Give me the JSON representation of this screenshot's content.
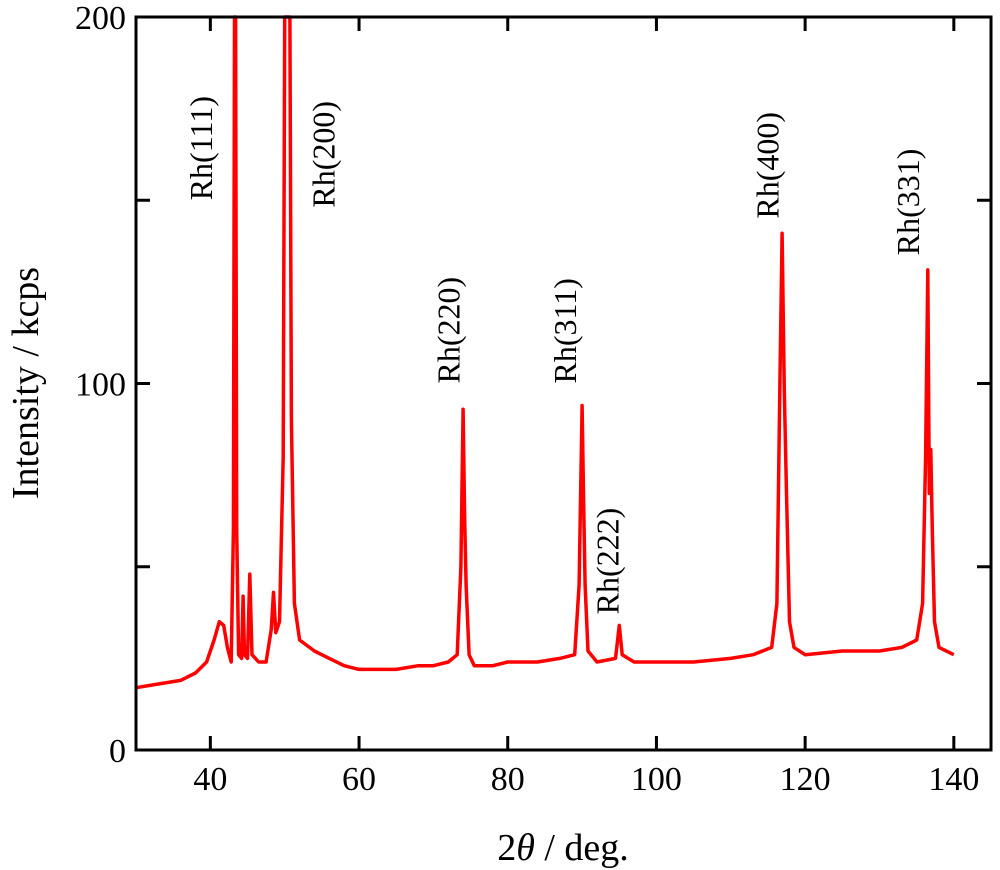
{
  "chart_data": {
    "type": "line",
    "xlabel_prefix": "2",
    "xlabel_symbol": "θ",
    "xlabel_suffix": " / deg.",
    "ylabel": "Intensity / kcps",
    "xlim": [
      30,
      145
    ],
    "ylim": [
      0,
      200
    ],
    "x_ticks": [
      40,
      60,
      80,
      100,
      120,
      140
    ],
    "y_ticks": [
      0,
      50,
      100,
      150,
      200
    ],
    "y_tick_labels": [
      "0",
      "",
      "100",
      "",
      "200"
    ],
    "grid": false,
    "legend": "none",
    "series": [
      {
        "color": "#ff0000",
        "points": [
          [
            30,
            17
          ],
          [
            33,
            18
          ],
          [
            36,
            19
          ],
          [
            38,
            21
          ],
          [
            39.5,
            24
          ],
          [
            40.5,
            30
          ],
          [
            41.2,
            35
          ],
          [
            41.8,
            34
          ],
          [
            42.3,
            28
          ],
          [
            42.8,
            24
          ],
          [
            43.1,
            60
          ],
          [
            43.25,
            200
          ],
          [
            43.4,
            200
          ],
          [
            43.55,
            60
          ],
          [
            43.8,
            26
          ],
          [
            44.2,
            25
          ],
          [
            44.4,
            42
          ],
          [
            44.6,
            26
          ],
          [
            45,
            25
          ],
          [
            45.3,
            48
          ],
          [
            45.6,
            26
          ],
          [
            46.5,
            24
          ],
          [
            47.5,
            24
          ],
          [
            48.2,
            33
          ],
          [
            48.5,
            43
          ],
          [
            48.8,
            32
          ],
          [
            49.3,
            35
          ],
          [
            49.8,
            80
          ],
          [
            50.0,
            200
          ],
          [
            50.7,
            200
          ],
          [
            50.9,
            90
          ],
          [
            51.3,
            40
          ],
          [
            52,
            30
          ],
          [
            54,
            27
          ],
          [
            56,
            25
          ],
          [
            58,
            23
          ],
          [
            60,
            22
          ],
          [
            62,
            22
          ],
          [
            65,
            22
          ],
          [
            68,
            23
          ],
          [
            70,
            23
          ],
          [
            72,
            24
          ],
          [
            73.2,
            26
          ],
          [
            73.7,
            50
          ],
          [
            74,
            93
          ],
          [
            74.2,
            64
          ],
          [
            74.4,
            45
          ],
          [
            74.8,
            26
          ],
          [
            75.5,
            23
          ],
          [
            78,
            23
          ],
          [
            80,
            24
          ],
          [
            84,
            24
          ],
          [
            87,
            25
          ],
          [
            89,
            26
          ],
          [
            89.6,
            45
          ],
          [
            90,
            94
          ],
          [
            90.2,
            68
          ],
          [
            90.4,
            45
          ],
          [
            90.8,
            27
          ],
          [
            92,
            24
          ],
          [
            94.5,
            25
          ],
          [
            95,
            34
          ],
          [
            95.4,
            26
          ],
          [
            97,
            24
          ],
          [
            100,
            24
          ],
          [
            105,
            24
          ],
          [
            110,
            25
          ],
          [
            113,
            26
          ],
          [
            115.5,
            28
          ],
          [
            116.2,
            40
          ],
          [
            116.6,
            100
          ],
          [
            116.9,
            141
          ],
          [
            117.2,
            98
          ],
          [
            117.5,
            70
          ],
          [
            117.9,
            35
          ],
          [
            118.5,
            28
          ],
          [
            120,
            26
          ],
          [
            125,
            27
          ],
          [
            130,
            27
          ],
          [
            133,
            28
          ],
          [
            135,
            30
          ],
          [
            135.8,
            40
          ],
          [
            136.2,
            80
          ],
          [
            136.5,
            131
          ],
          [
            136.7,
            70
          ],
          [
            136.9,
            82
          ],
          [
            137.1,
            60
          ],
          [
            137.4,
            35
          ],
          [
            138,
            28
          ],
          [
            140,
            26
          ]
        ]
      }
    ],
    "annotations": [
      {
        "text": "Rh(111)",
        "x": 40.2,
        "y": 150
      },
      {
        "text": "Rh(200)",
        "x": 56.7,
        "y": 148
      },
      {
        "text": "Rh(220)",
        "x": 73.5,
        "y": 100
      },
      {
        "text": "Rh(311)",
        "x": 89.2,
        "y": 100
      },
      {
        "text": "Rh(222)",
        "x": 94.9,
        "y": 37
      },
      {
        "text": "Rh(400)",
        "x": 116.4,
        "y": 145
      },
      {
        "text": "Rh(331)",
        "x": 135.3,
        "y": 135
      }
    ]
  }
}
